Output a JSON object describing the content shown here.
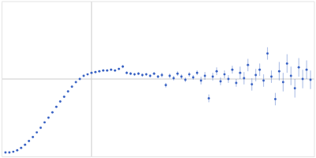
{
  "chart_data": {
    "type": "scatter",
    "x": [
      5,
      10,
      15,
      20,
      25,
      30,
      35,
      40,
      45,
      50,
      55,
      60,
      65,
      70,
      75,
      80,
      85,
      90,
      95,
      100,
      105,
      110,
      115,
      120,
      125,
      130,
      135,
      140,
      145,
      150,
      155,
      160,
      165,
      170,
      175,
      180,
      185,
      190,
      195,
      200,
      205,
      210,
      215,
      220,
      225,
      230,
      235,
      240,
      245,
      250,
      255,
      260,
      265,
      270,
      275,
      280,
      285,
      290,
      295,
      300,
      305,
      310,
      315,
      320,
      325,
      330,
      335,
      340,
      345,
      350,
      355,
      360,
      365,
      370,
      375,
      380,
      385,
      390,
      395
    ],
    "y": [
      5,
      5,
      6,
      8,
      11,
      15,
      20,
      25,
      31,
      37,
      44,
      50,
      57,
      64,
      71,
      77,
      84,
      90,
      96,
      100,
      104,
      106,
      108,
      109,
      110,
      111,
      111,
      112,
      111,
      113,
      116,
      108,
      107,
      106,
      107,
      105,
      106,
      104,
      107,
      103,
      105,
      92,
      104,
      101,
      107,
      103,
      99,
      106,
      102,
      108,
      98,
      104,
      75,
      103,
      110,
      97,
      106,
      100,
      112,
      95,
      108,
      101,
      118,
      93,
      105,
      112,
      98,
      133,
      103,
      74,
      110,
      96,
      120,
      104,
      88,
      115,
      100,
      112,
      99
    ],
    "errors": [
      0.5,
      0.5,
      0.5,
      0.5,
      0.5,
      0.5,
      0.5,
      0.5,
      0.5,
      0.5,
      0.5,
      0.5,
      0.5,
      0.5,
      0.5,
      0.5,
      0.5,
      0.5,
      0.5,
      0.5,
      1,
      1,
      1,
      1,
      1,
      1,
      1,
      1,
      1,
      1,
      2,
      2,
      2,
      2,
      2,
      2,
      2,
      2,
      2,
      2,
      3,
      3,
      3,
      3,
      3,
      3,
      3,
      3,
      3,
      3,
      5,
      5,
      5,
      5,
      5,
      5,
      5,
      5,
      5,
      5,
      8,
      8,
      8,
      8,
      8,
      8,
      8,
      8,
      8,
      8,
      12,
      12,
      12,
      12,
      12,
      12,
      12,
      12,
      12
    ],
    "xlim": [
      0,
      400
    ],
    "ylim": [
      0,
      200
    ],
    "xticks": [
      115
    ],
    "yticks": [
      100
    ],
    "grid": true,
    "tick_labels": false,
    "color": "#3a63c4",
    "marker": "circle"
  }
}
